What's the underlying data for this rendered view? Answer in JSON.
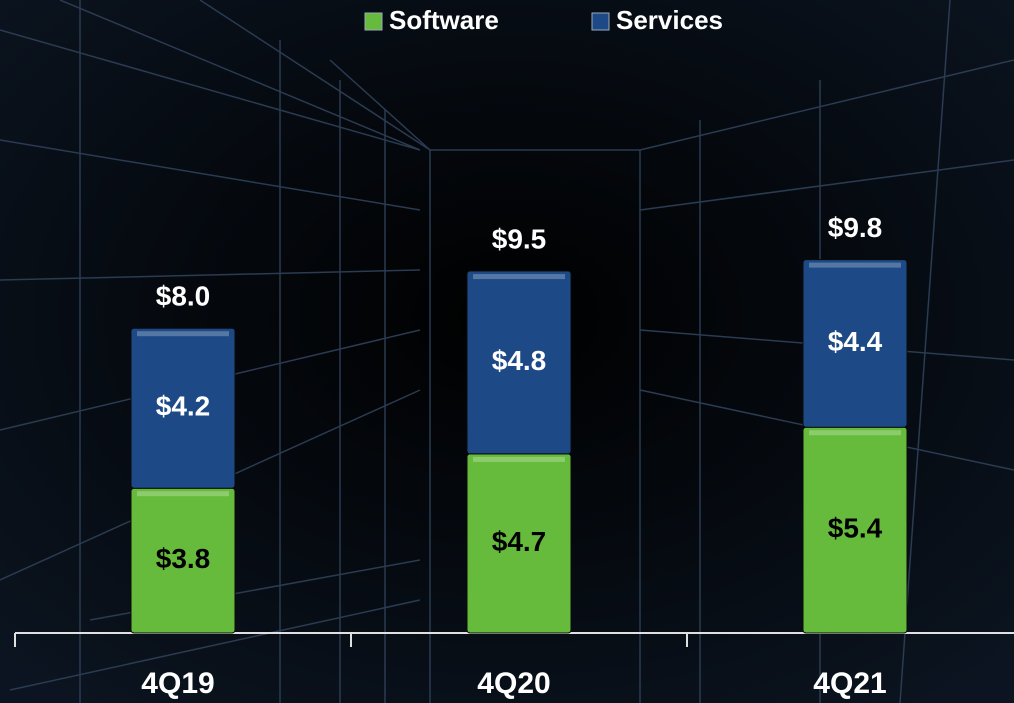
{
  "chart_data": {
    "type": "stacked-bar",
    "categories": [
      "4Q19",
      "4Q20",
      "4Q21"
    ],
    "series": [
      {
        "name": "Software",
        "color": "#66bb3c",
        "values": [
          3.8,
          4.7,
          5.4
        ],
        "value_labels": [
          "$3.8",
          "$4.7",
          "$5.4"
        ]
      },
      {
        "name": "Services",
        "color": "#1d4a86",
        "values": [
          4.2,
          4.8,
          4.4
        ],
        "value_labels": [
          "$4.2",
          "$4.8",
          "$4.4"
        ]
      }
    ],
    "totals": {
      "values": [
        8.0,
        9.5,
        9.8
      ],
      "value_labels": [
        "$8.0",
        "$9.5",
        "$9.8"
      ]
    },
    "legend": "top"
  }
}
